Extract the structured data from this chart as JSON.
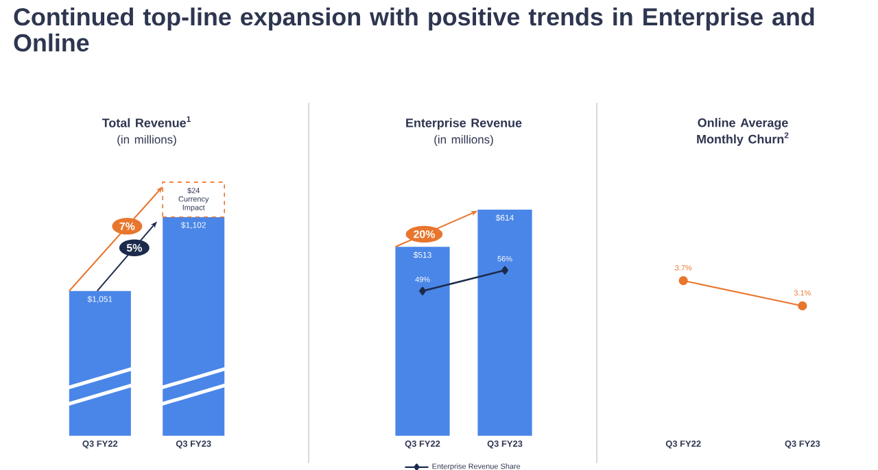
{
  "chart_data": [
    {
      "type": "other",
      "title": "Continued top-line expansion with positive trends in Enterprise and Online"
    },
    {
      "type": "bar",
      "title": "Total Revenue$^{1}$",
      "subtitle": "(in millions)",
      "categories": [
        "Q3 FY22",
        "Q3 FY23"
      ],
      "stacked": true,
      "tick_labels": "x",
      "series": [
        {
          "color": "#4a86e8",
          "values": [
            1051,
            1102
          ],
          "value_labels": [
            "$1,051",
            "$1,102"
          ]
        },
        {
          "color": "#e8762d",
          "values": [
            null,
            24
          ],
          "value_labels": [
            null,
            "$24 Currency Impact"
          ],
          "line_style": "dashed"
        }
      ],
      "annotations": [
        "7%",
        "5%"
      ]
    },
    {
      "type": "bar",
      "title": "Enterprise Revenue",
      "subtitle": "(in millions)",
      "categories": [
        "Q3 FY22",
        "Q3 FY23"
      ],
      "tick_labels": "x",
      "legend": "bottom",
      "series": [
        {
          "color": "#4a86e8",
          "values": [
            513,
            614
          ],
          "value_labels": [
            "$513",
            "$614"
          ]
        },
        {
          "type": "line",
          "name": "Enterprise Revenue Share",
          "axis": "y2",
          "color": "#1c2b4b",
          "marker": "diamond",
          "values": [
            49,
            56
          ],
          "value_labels": [
            "49%",
            "56%"
          ]
        }
      ],
      "annotations": [
        "20%"
      ]
    },
    {
      "type": "line",
      "title": "Online Average Monthly Churn$^{2}$",
      "categories": [
        "Q3 FY22",
        "Q3 FY23"
      ],
      "tick_labels": "x",
      "color": "#e8762d",
      "marker": "circle",
      "values": [
        3.7,
        3.1
      ],
      "value_labels": [
        "3.7%",
        "3.1%"
      ]
    }
  ]
}
